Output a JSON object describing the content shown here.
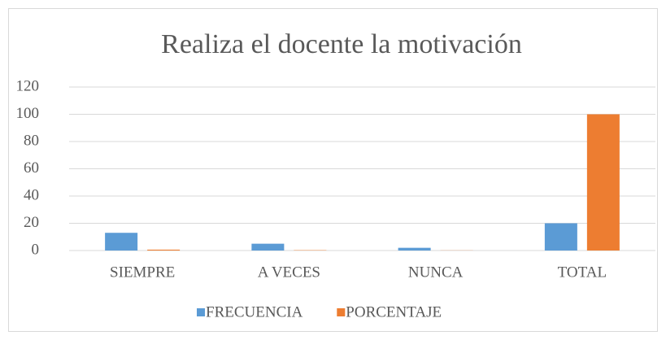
{
  "chart_data": {
    "type": "bar",
    "title": "Realiza el docente la motivación",
    "categories": [
      "SIEMPRE",
      "A VECES",
      "NUNCA",
      "TOTAL"
    ],
    "series": [
      {
        "name": "FRECUENCIA",
        "color": "#5b9bd5",
        "values": [
          13,
          5,
          2,
          20
        ]
      },
      {
        "name": "PORCENTAJE",
        "color": "#ed7d31",
        "values": [
          0.65,
          0.25,
          0.1,
          100
        ]
      }
    ],
    "ylim": [
      0,
      120
    ],
    "yticks": [
      0,
      20,
      40,
      60,
      80,
      100,
      120
    ],
    "grid": true,
    "legend": "bottom"
  }
}
